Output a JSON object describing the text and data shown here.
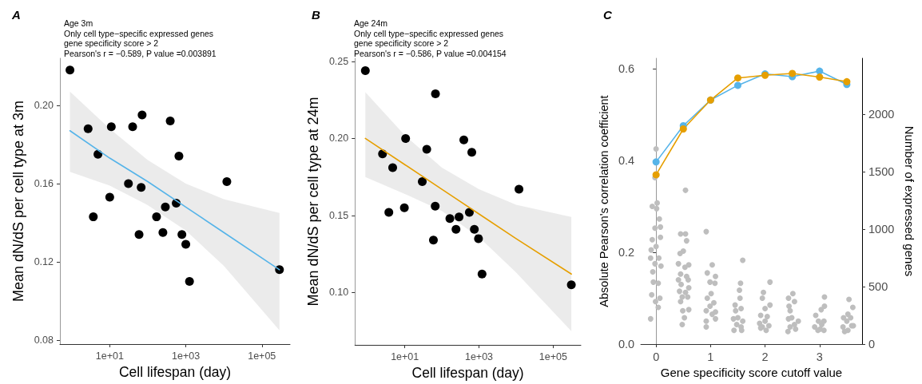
{
  "chart_data": [
    {
      "type": "scatter",
      "title": "A",
      "subtitle": "Age 3m\nOnly cell type−specific expressed genes\ngene specificity score > 2\nPearson's r = −0.589, P value =0.003891",
      "xlabel": "Cell lifespan (day)",
      "ylabel": "Mean dN/dS per cell type at 3m",
      "log": "x",
      "grid": false,
      "marker": "circle",
      "xlim": [
        0.49,
        550000
      ],
      "xticks": [
        {
          "value": 10,
          "label": "1e+01"
        },
        {
          "value": 1000,
          "label": "1e+03"
        },
        {
          "value": 100000,
          "label": "1e+05"
        }
      ],
      "ylim": [
        0.078,
        0.224
      ],
      "yticks": [
        0.08,
        0.12,
        0.16,
        {
          "value": 0.2,
          "label": "0.20"
        }
      ],
      "series": [
        {
          "color": "#000000",
          "x": [
            0.9,
            2.7,
            4.9,
            3.7,
            11,
            10,
            40,
            71,
            31,
            67,
            59,
            170,
            250,
            290,
            390,
            660,
            560,
            790,
            1000,
            1250,
            12000,
            290000
          ],
          "values": [
            0.218,
            0.188,
            0.175,
            0.143,
            0.189,
            0.153,
            0.189,
            0.195,
            0.16,
            0.158,
            0.134,
            0.143,
            0.135,
            0.148,
            0.192,
            0.174,
            0.15,
            0.134,
            0.129,
            0.11,
            0.161,
            0.116
          ]
        },
        {
          "type": "line",
          "marker": "none",
          "color": "#56b4e9",
          "x": [
            0.9,
            10,
            100,
            1000,
            10000,
            290000
          ],
          "values": [
            0.187,
            0.173,
            0.161,
            0.148,
            0.135,
            0.116
          ],
          "lower": [
            0.166,
            0.159,
            0.149,
            0.136,
            0.118,
            0.085
          ],
          "upper": [
            0.207,
            0.188,
            0.172,
            0.16,
            0.152,
            0.145
          ]
        }
      ]
    },
    {
      "type": "scatter",
      "title": "B",
      "subtitle": "Age 24m\nOnly cell type−specific expressed genes\ngene specificity score > 2\nPearson's r = −0.586, P value =0.004154",
      "xlabel": "Cell lifespan (day)",
      "ylabel": "Mean dN/dS per cell type at 24m",
      "log": "x",
      "grid": false,
      "marker": "circle",
      "xlim": [
        0.45,
        560000
      ],
      "xticks": [
        {
          "value": 10,
          "label": "1e+01"
        },
        {
          "value": 1000,
          "label": "1e+03"
        },
        {
          "value": 100000,
          "label": "1e+05"
        }
      ],
      "ylim": [
        0.066,
        0.252
      ],
      "yticks": [
        {
          "value": 0.1,
          "label": "0.10"
        },
        0.15,
        {
          "value": 0.2,
          "label": "0.20"
        },
        0.25
      ],
      "series": [
        {
          "color": "#000000",
          "x": [
            0.86,
            67,
            10.5,
            39,
            390,
            640,
            2.5,
            4.7,
            29.5,
            12000,
            66,
            9.7,
            3.7,
            164,
            290,
            550,
            240,
            750,
            970,
            59,
            1210,
            310000
          ],
          "values": [
            0.244,
            0.229,
            0.2,
            0.193,
            0.199,
            0.191,
            0.19,
            0.181,
            0.172,
            0.167,
            0.156,
            0.155,
            0.152,
            0.148,
            0.149,
            0.152,
            0.141,
            0.141,
            0.135,
            0.134,
            0.112,
            0.105
          ]
        },
        {
          "type": "line",
          "marker": "none",
          "color": "#e69f00",
          "x": [
            0.86,
            10,
            100,
            1000,
            10000,
            310000
          ],
          "values": [
            0.2,
            0.183,
            0.167,
            0.151,
            0.135,
            0.112
          ],
          "lower": [
            0.175,
            0.164,
            0.153,
            0.136,
            0.113,
            0.075
          ],
          "upper": [
            0.23,
            0.202,
            0.181,
            0.167,
            0.157,
            0.149
          ]
        }
      ]
    },
    {
      "type": "line",
      "title": "C",
      "xlabel": "Gene specificity score cutoff value",
      "ylabel": "Absolute Pearson's correlation coefficient",
      "y2label": "Number of expressed genes",
      "grid": false,
      "marker": "circle",
      "line_style": "solid",
      "xlim": [
        -0.28,
        3.78
      ],
      "xticks": [
        0,
        1,
        2,
        3
      ],
      "ylim": [
        0,
        0.623
      ],
      "yticks": [
        {
          "value": 0,
          "label": "0.0"
        },
        0.2,
        0.4,
        0.6
      ],
      "y2lim": [
        0,
        2490
      ],
      "y2ticks": [
        0,
        500,
        1000,
        1500,
        2000
      ],
      "series": [
        {
          "type": "scatter",
          "axis": "y2",
          "color": "#bebebe",
          "x": [
            0,
            -0.02,
            -0.07,
            0.02,
            0.01,
            0.06,
            -0.02,
            0.08,
            0.08,
            -0.07,
            0,
            -0.09,
            -0.1,
            0.05,
            -0.02,
            -0.06,
            0.09,
            -0.05,
            0.04,
            -0.08,
            0.07,
            -0.01,
            0.04,
            -0.1,
            0.54,
            0.45,
            0.54,
            0.56,
            0.5,
            0.44,
            0.41,
            0.6,
            0.53,
            0.45,
            0.56,
            0.41,
            0.59,
            0.46,
            0.6,
            0.43,
            0.54,
            0.48,
            0.58,
            0.45,
            0.49,
            0.6,
            0.52,
            0.48,
            0.92,
            1.03,
            0.94,
            1.09,
            0.99,
            1.08,
            1.01,
            0.94,
            1.06,
            0.99,
            0.92,
            1.09,
            1.03,
            0.92,
            1.09,
            0.92,
            1.59,
            1.55,
            1.53,
            1.54,
            1.45,
            1.56,
            1.46,
            1.5,
            1.42,
            1.59,
            1.48,
            1.56,
            1.43,
            1.57,
            2.09,
            1.97,
            1.95,
            2.09,
            2.0,
            1.92,
            2.04,
            2.0,
            1.9,
            1.95,
            2.07,
            2.02,
            1.92,
            2.51,
            2.43,
            2.54,
            2.44,
            2.46,
            2.49,
            2.61,
            2.43,
            2.54,
            2.42,
            2.56,
            2.46,
            3.09,
            3.09,
            3.03,
            2.93,
            3.08,
            2.98,
            3.04,
            2.91,
            3.08,
            2.97,
            3.01,
            3.54,
            3.61,
            3.52,
            3.44,
            3.57,
            3.5,
            3.59,
            3.43,
            3.52,
            3.46,
            3.62
          ],
          "values": [
            1700,
            1450,
            1200,
            1230,
            1180,
            1090,
            1010,
            1020,
            930,
            910,
            850,
            820,
            750,
            750,
            700,
            630,
            680,
            540,
            530,
            430,
            400,
            370,
            320,
            220,
            1340,
            960,
            960,
            900,
            810,
            790,
            700,
            690,
            670,
            610,
            590,
            560,
            560,
            520,
            490,
            460,
            450,
            410,
            410,
            370,
            290,
            300,
            230,
            170,
            980,
            690,
            620,
            590,
            540,
            530,
            440,
            400,
            360,
            330,
            290,
            280,
            260,
            200,
            220,
            150,
            730,
            530,
            470,
            400,
            340,
            310,
            290,
            230,
            220,
            200,
            170,
            150,
            120,
            120,
            540,
            450,
            400,
            340,
            310,
            250,
            240,
            200,
            180,
            150,
            160,
            120,
            140,
            440,
            400,
            370,
            330,
            290,
            230,
            200,
            220,
            170,
            110,
            130,
            150,
            410,
            330,
            300,
            250,
            200,
            200,
            170,
            150,
            120,
            120,
            130,
            390,
            320,
            260,
            230,
            230,
            200,
            160,
            150,
            120,
            110,
            160
          ]
        },
        {
          "color": "#56b4e9",
          "x": [
            0,
            0.5,
            1,
            1.5,
            2,
            2.5,
            3,
            3.5
          ],
          "values": [
            0.397,
            0.476,
            0.532,
            0.564,
            0.589,
            0.583,
            0.595,
            0.566
          ]
        },
        {
          "color": "#e69f00",
          "x": [
            0,
            0.5,
            1,
            1.5,
            2,
            2.5,
            3,
            3.5
          ],
          "values": [
            0.369,
            0.469,
            0.532,
            0.58,
            0.586,
            0.59,
            0.582,
            0.572
          ]
        }
      ]
    }
  ]
}
